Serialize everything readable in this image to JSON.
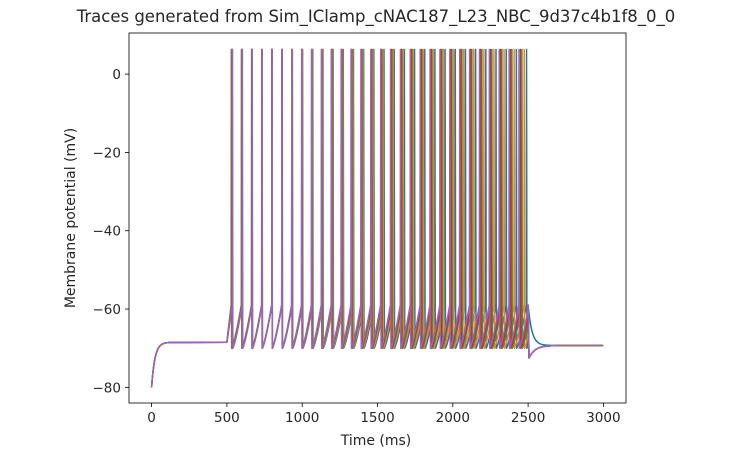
{
  "chart_data": {
    "type": "line",
    "title": "Traces generated from Sim_IClamp_cNAC187_L23_NBC_9d37c4b1f8_0_0",
    "xlabel": "Time (ms)",
    "ylabel": "Membrane potential (mV)",
    "xlim": [
      -150,
      3150
    ],
    "ylim": [
      -84,
      10.5
    ],
    "xticks": [
      0,
      500,
      1000,
      1500,
      2000,
      2500,
      3000
    ],
    "yticks": [
      -80,
      -60,
      -40,
      -20,
      0
    ],
    "xtick_labels": [
      "0",
      "500",
      "1000",
      "1500",
      "2000",
      "2500",
      "3000"
    ],
    "ytick_labels": [
      "−80",
      "−60",
      "−40",
      "−20",
      "0"
    ],
    "grid": false,
    "stimulus": {
      "onset_ms": 500,
      "offset_ms": 2500
    },
    "resting_potential_mV": -68.5,
    "initial_potential_mV": -80,
    "spike_peak_mV": 6.3,
    "afterhyperpolarization_mV": -70,
    "spike_threshold_mV": -59,
    "spike_count": 30,
    "series": [
      {
        "color": "#1f77b4",
        "first_spike_ms": 528,
        "isi_ms": 67.6,
        "last_offset_mV": -69.3,
        "decay": "slow"
      },
      {
        "color": "#ff7f0e",
        "first_spike_ms": 530,
        "isi_ms": 67.0
      },
      {
        "color": "#2ca02c",
        "first_spike_ms": 532,
        "isi_ms": 66.4
      },
      {
        "color": "#d62728",
        "first_spike_ms": 534,
        "isi_ms": 66.0
      },
      {
        "color": "#9467bd",
        "first_spike_ms": 536,
        "isi_ms": 65.6
      }
    ]
  }
}
